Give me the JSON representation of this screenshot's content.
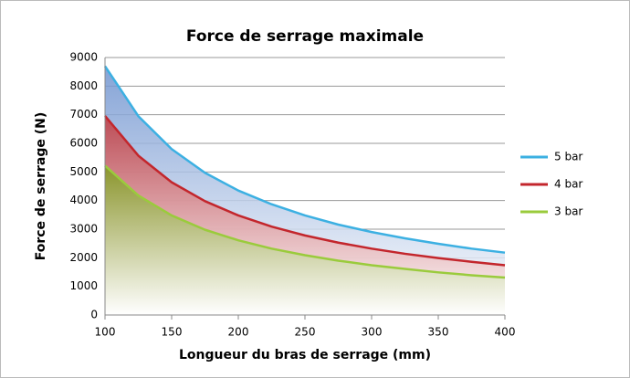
{
  "chart_data": {
    "type": "line",
    "title": "Force de serrage maximale",
    "xlabel": "Longueur du bras de serrage (mm)",
    "ylabel": "Force de serrage (N)",
    "x": [
      100,
      125,
      150,
      175,
      200,
      225,
      250,
      275,
      300,
      325,
      350,
      375,
      400
    ],
    "series": [
      {
        "name": "5 bar",
        "color": "#3cb0e2",
        "values": [
          8700,
          6950,
          5800,
          4970,
          4350,
          3870,
          3480,
          3160,
          2900,
          2680,
          2490,
          2320,
          2180
        ]
      },
      {
        "name": "4 bar",
        "color": "#c3262c",
        "values": [
          6960,
          5570,
          4640,
          3980,
          3480,
          3090,
          2780,
          2530,
          2320,
          2140,
          1990,
          1860,
          1740
        ]
      },
      {
        "name": "3 bar",
        "color": "#9acb3c",
        "values": [
          5220,
          4180,
          3480,
          2980,
          2610,
          2320,
          2090,
          1900,
          1740,
          1610,
          1490,
          1390,
          1310
        ]
      }
    ],
    "xlim": [
      100,
      400
    ],
    "xticks": [
      100,
      150,
      200,
      250,
      300,
      350,
      400
    ],
    "ylim": [
      0,
      9000
    ],
    "yticks": [
      0,
      1000,
      2000,
      3000,
      4000,
      5000,
      6000,
      7000,
      8000,
      9000
    ],
    "grid": true,
    "legend": "right",
    "area": true
  }
}
